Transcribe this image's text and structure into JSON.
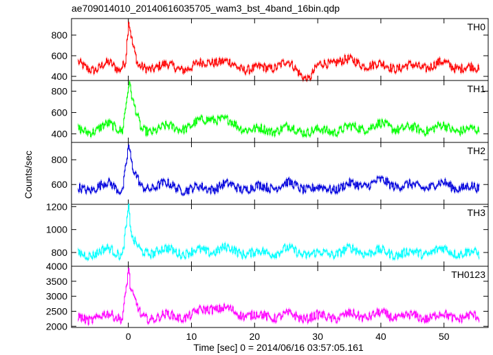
{
  "chart_data": {
    "type": "line",
    "title": "ae709014010_20140616035705_wam3_bst_4band_16bin.qdp",
    "xlabel": "Time [sec] 0 = 2014/06/16 03:57:05.161",
    "ylabel": "Counts/sec",
    "xlim": [
      -9,
      57
    ],
    "xticks": [
      0,
      10,
      20,
      30,
      40,
      50
    ],
    "grid": false,
    "panels": [
      {
        "name": "TH0",
        "color": "#ff0000",
        "ylim": [
          360,
          960
        ],
        "yticks": [
          400,
          600,
          800
        ],
        "series": [
          {
            "x": [
              -8,
              -5,
              -3,
              -1.5,
              -0.5,
              0,
              0.3,
              0.6,
              1.5,
              5,
              10,
              13,
              20,
              25,
              28.5,
              30,
              33,
              40,
              45,
              50,
              55.5
            ],
            "y": [
              520,
              470,
              520,
              480,
              560,
              940,
              820,
              700,
              480,
              500,
              480,
              560,
              460,
              530,
              380,
              490,
              560,
              500,
              490,
              520,
              460
            ]
          }
        ]
      },
      {
        "name": "TH1",
        "color": "#00ff00",
        "ylim": [
          320,
          900
        ],
        "yticks": [
          400,
          600,
          800
        ],
        "series": [
          {
            "x": [
              -8,
              -5,
              -3,
              -1,
              0,
              0.3,
              0.6,
              2,
              5,
              10,
              13,
              20,
              25,
              30,
              35,
              40,
              45,
              50,
              55.5
            ],
            "y": [
              430,
              440,
              480,
              450,
              860,
              830,
              700,
              430,
              450,
              470,
              560,
              430,
              450,
              420,
              450,
              480,
              440,
              460,
              420
            ]
          }
        ]
      },
      {
        "name": "TH2",
        "color": "#0000dd",
        "ylim": [
          440,
          940
        ],
        "yticks": [
          600,
          800
        ],
        "series": [
          {
            "x": [
              -8,
              -5,
              -3,
              -1,
              0,
              0.3,
              0.6,
              2,
              5,
              10,
              15,
              20,
              25,
              30,
              35,
              40,
              45,
              50,
              55.5
            ],
            "y": [
              560,
              580,
              600,
              560,
              920,
              820,
              720,
              570,
              600,
              560,
              590,
              570,
              600,
              560,
              590,
              620,
              580,
              600,
              560
            ]
          }
        ]
      },
      {
        "name": "TH3",
        "color": "#00ffff",
        "ylim": [
          680,
          1220
        ],
        "yticks": [
          800,
          1000,
          1200
        ],
        "series": [
          {
            "x": [
              -8,
              -5,
              -3,
              -1,
              0,
              0.3,
              0.6,
              2,
              5,
              10,
              15,
              20,
              25,
              30,
              35,
              40,
              45,
              50,
              55.5
            ],
            "y": [
              780,
              800,
              820,
              790,
              1200,
              1020,
              900,
              800,
              820,
              800,
              830,
              790,
              820,
              780,
              820,
              800,
              790,
              820,
              780
            ]
          }
        ]
      },
      {
        "name": "TH0123",
        "color": "#ff00ff",
        "ylim": [
          1960,
          4000
        ],
        "yticks": [
          2000,
          2500,
          3000,
          3500,
          4000
        ],
        "series": [
          {
            "x": [
              -8,
              -5,
              -3,
              -1,
              0,
              0.3,
              0.6,
              2,
              5,
              10,
              13,
              20,
              25,
              30,
              35,
              40,
              45,
              50,
              55.5
            ],
            "y": [
              2250,
              2300,
              2350,
              2330,
              3950,
              3200,
              3000,
              2300,
              2320,
              2350,
              2650,
              2330,
              2350,
              2300,
              2350,
              2380,
              2300,
              2350,
              2280
            ]
          }
        ]
      }
    ]
  }
}
